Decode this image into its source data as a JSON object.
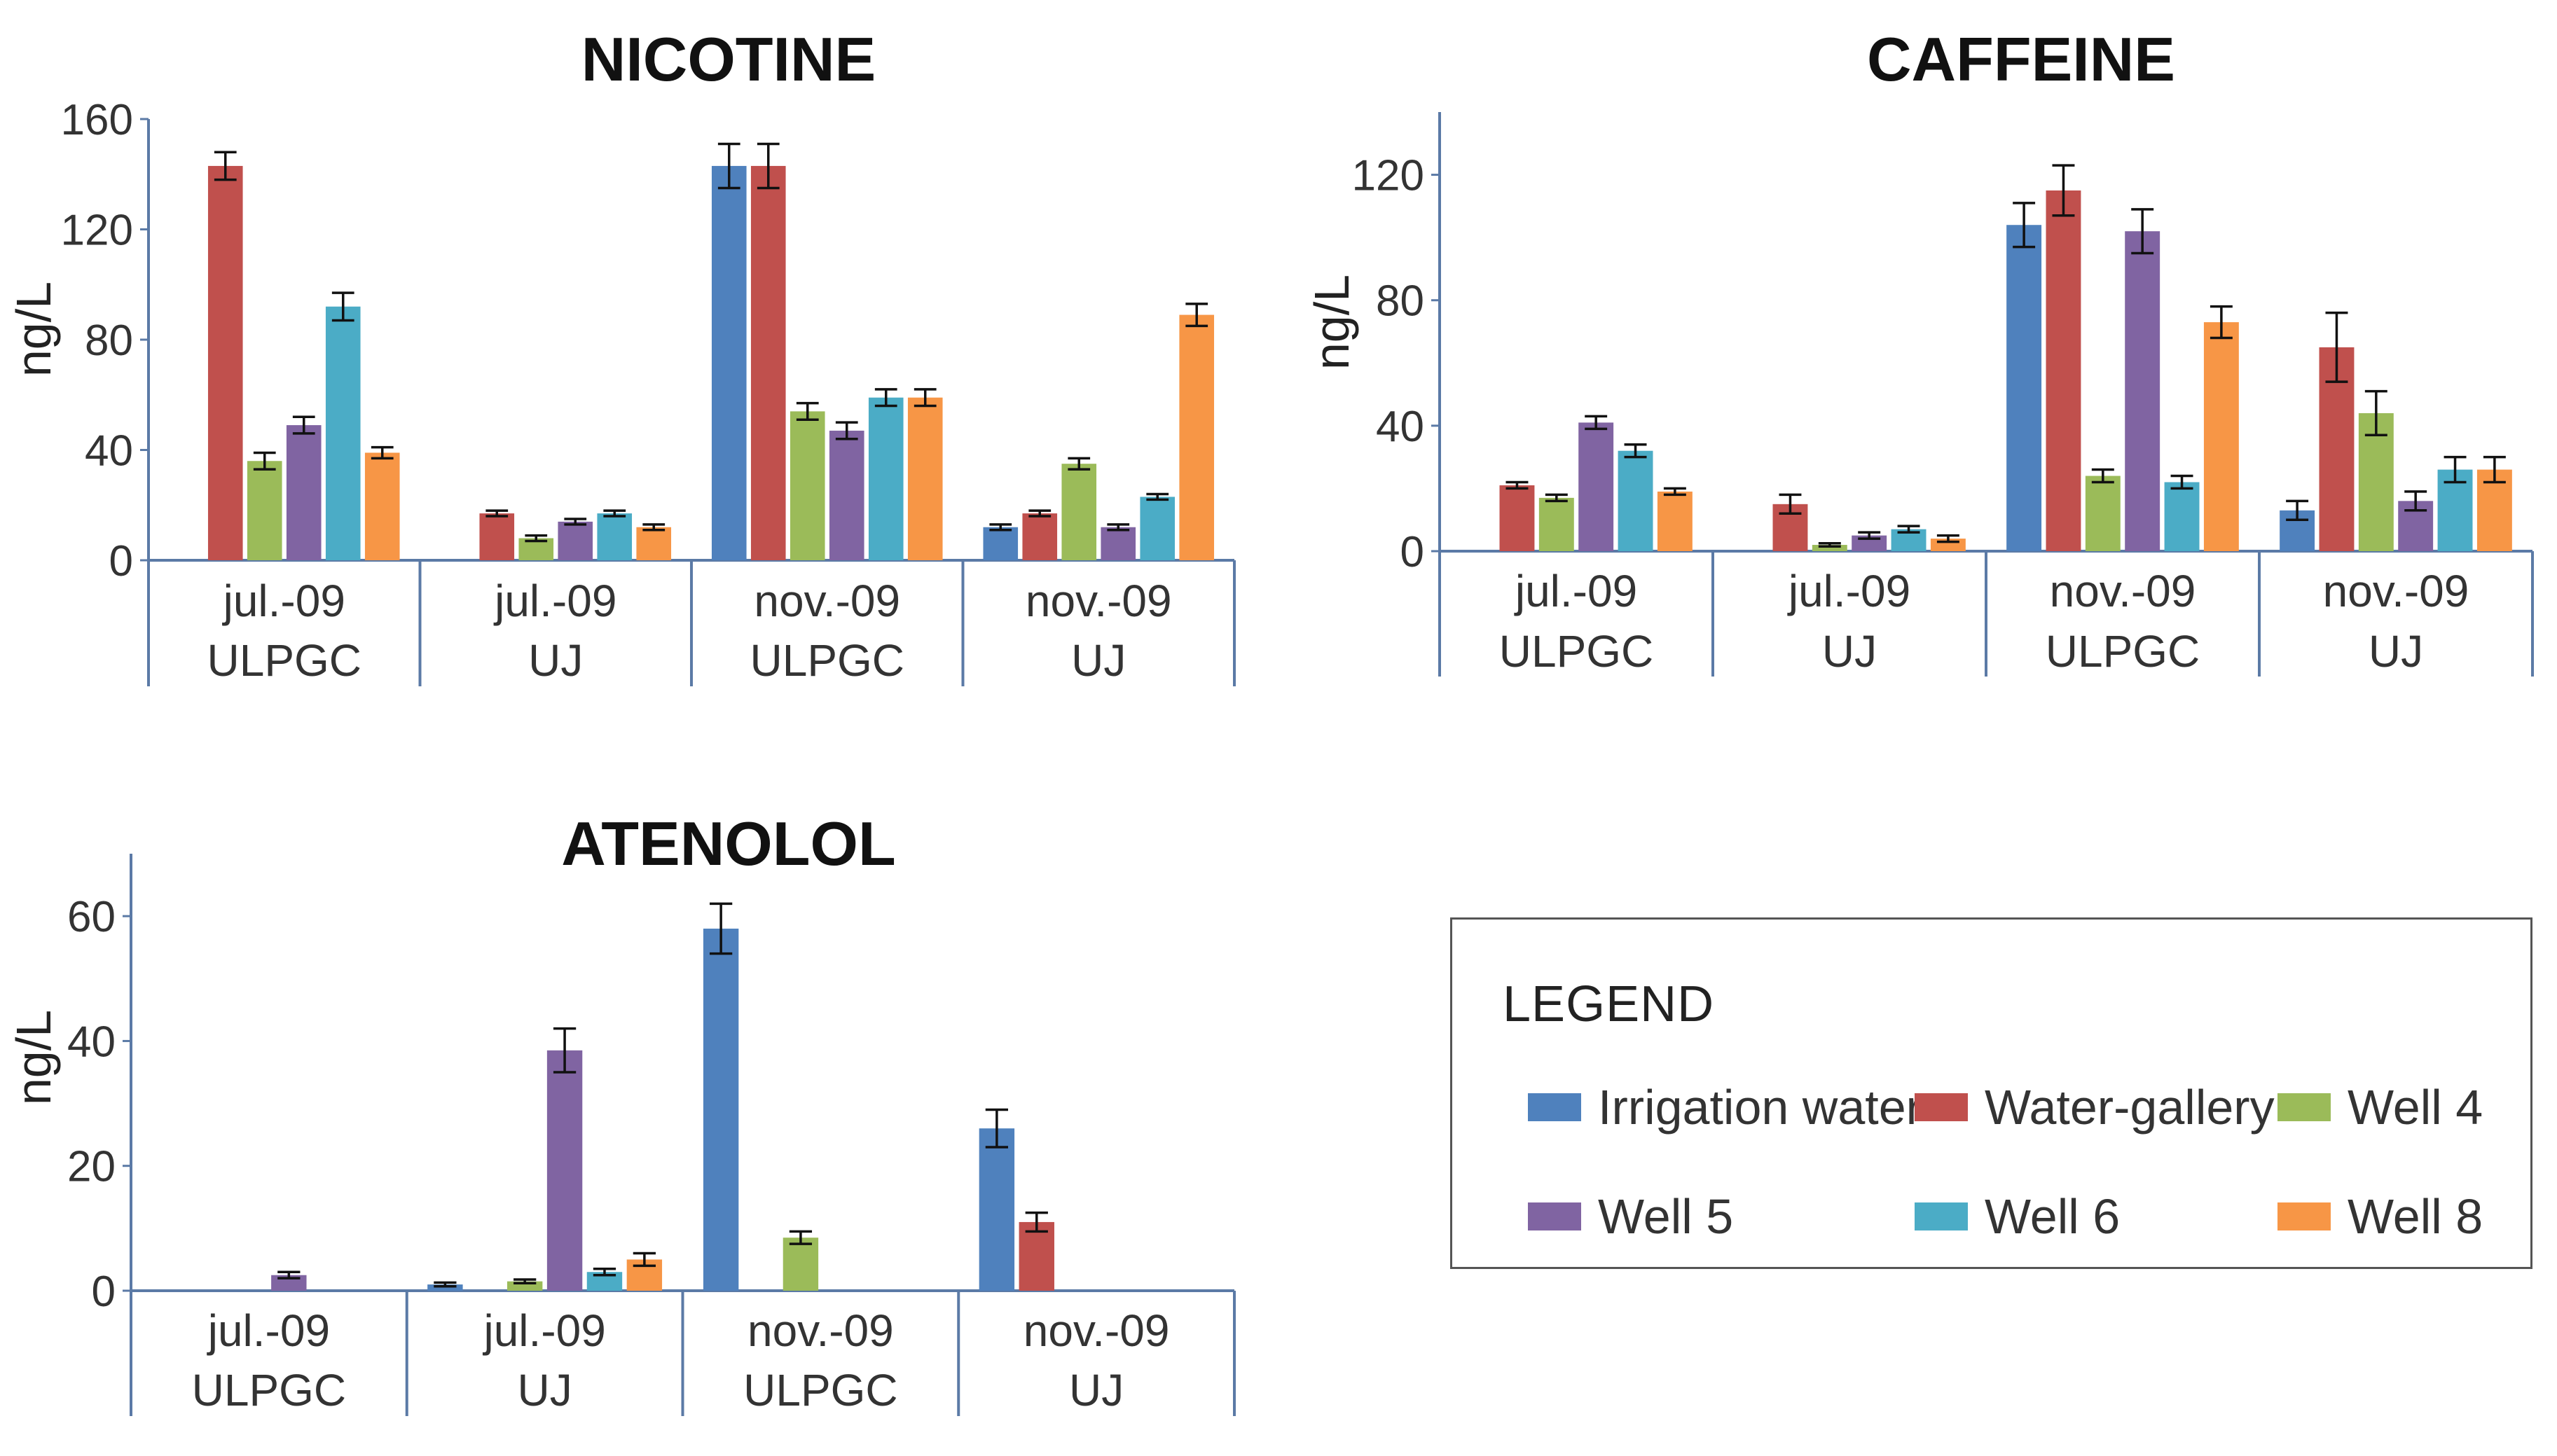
{
  "colors": {
    "Irrigation water": "#4f81bd",
    "Water-gallery": "#c0504d",
    "Well 4": "#9bbb59",
    "Well 5": "#8064a2",
    "Well 6": "#4bacc6",
    "Well 8": "#f79646"
  },
  "legend": {
    "title": "LEGEND",
    "items": [
      "Irrigation water",
      "Water-gallery",
      "Well 4",
      "Well 5",
      "Well 6",
      "Well 8"
    ]
  },
  "chart_data": [
    {
      "type": "bar",
      "title": "NICOTINE",
      "ylabel": "ng/L",
      "ylim": [
        0,
        160
      ],
      "yticks": [
        0,
        40,
        80,
        120,
        160
      ],
      "categories": [
        [
          "jul.-09",
          "ULPGC"
        ],
        [
          "jul.-09",
          "UJ"
        ],
        [
          "nov.-09",
          "ULPGC"
        ],
        [
          "nov.-09",
          "UJ"
        ]
      ],
      "series": [
        {
          "name": "Irrigation water",
          "values": [
            null,
            null,
            143,
            12
          ],
          "errors": [
            0,
            0,
            8,
            1
          ]
        },
        {
          "name": "Water-gallery",
          "values": [
            143,
            17,
            143,
            17
          ],
          "errors": [
            5,
            1,
            8,
            1
          ]
        },
        {
          "name": "Well 4",
          "values": [
            36,
            8,
            54,
            35
          ],
          "errors": [
            3,
            1,
            3,
            2
          ]
        },
        {
          "name": "Well 5",
          "values": [
            49,
            14,
            47,
            12
          ],
          "errors": [
            3,
            1,
            3,
            1
          ]
        },
        {
          "name": "Well 6",
          "values": [
            92,
            17,
            59,
            23
          ],
          "errors": [
            5,
            1,
            3,
            1
          ]
        },
        {
          "name": "Well 8",
          "values": [
            39,
            12,
            59,
            89
          ],
          "errors": [
            2,
            1,
            3,
            4
          ]
        }
      ]
    },
    {
      "type": "bar",
      "title": "CAFFEINE",
      "ylabel": "ng/L",
      "ylim": [
        0,
        140
      ],
      "yticks": [
        0,
        40,
        80,
        120
      ],
      "categories": [
        [
          "jul.-09",
          "ULPGC"
        ],
        [
          "jul.-09",
          "UJ"
        ],
        [
          "nov.-09",
          "ULPGC"
        ],
        [
          "nov.-09",
          "UJ"
        ]
      ],
      "series": [
        {
          "name": "Irrigation water",
          "values": [
            null,
            null,
            104,
            13
          ],
          "errors": [
            0,
            0,
            7,
            3
          ]
        },
        {
          "name": "Water-gallery",
          "values": [
            21,
            15,
            115,
            65
          ],
          "errors": [
            1,
            3,
            8,
            11
          ]
        },
        {
          "name": "Well 4",
          "values": [
            17,
            2,
            24,
            44
          ],
          "errors": [
            1,
            0.5,
            2,
            7
          ]
        },
        {
          "name": "Well 5",
          "values": [
            41,
            5,
            102,
            16
          ],
          "errors": [
            2,
            1,
            7,
            3
          ]
        },
        {
          "name": "Well 6",
          "values": [
            32,
            7,
            22,
            26
          ],
          "errors": [
            2,
            1,
            2,
            4
          ]
        },
        {
          "name": "Well 8",
          "values": [
            19,
            4,
            73,
            26
          ],
          "errors": [
            1,
            1,
            5,
            4
          ]
        }
      ]
    },
    {
      "type": "bar",
      "title": "ATENOLOL",
      "ylabel": "ng/L",
      "ylim": [
        0,
        70
      ],
      "yticks": [
        0,
        20,
        40,
        60
      ],
      "categories": [
        [
          "jul.-09",
          "ULPGC"
        ],
        [
          "jul.-09",
          "UJ"
        ],
        [
          "nov.-09",
          "ULPGC"
        ],
        [
          "nov.-09",
          "UJ"
        ]
      ],
      "series": [
        {
          "name": "Irrigation water",
          "values": [
            null,
            1,
            58,
            26
          ],
          "errors": [
            0,
            0.3,
            4,
            3
          ]
        },
        {
          "name": "Water-gallery",
          "values": [
            null,
            null,
            null,
            11
          ],
          "errors": [
            0,
            0,
            0,
            1.5
          ]
        },
        {
          "name": "Well 4",
          "values": [
            null,
            1.5,
            8.5,
            null
          ],
          "errors": [
            0,
            0.3,
            1,
            0
          ]
        },
        {
          "name": "Well 5",
          "values": [
            2.5,
            38.5,
            null,
            null
          ],
          "errors": [
            0.5,
            3.5,
            0,
            0
          ]
        },
        {
          "name": "Well 6",
          "values": [
            null,
            3,
            null,
            null
          ],
          "errors": [
            0,
            0.5,
            0,
            0
          ]
        },
        {
          "name": "Well 8",
          "values": [
            null,
            5,
            null,
            null
          ],
          "errors": [
            0,
            1,
            0,
            0
          ]
        }
      ]
    }
  ]
}
